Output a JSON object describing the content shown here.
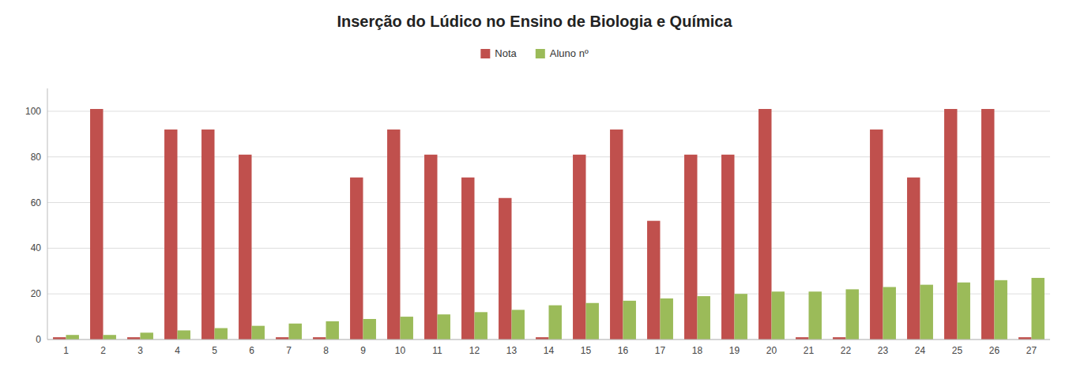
{
  "chart_data": {
    "type": "bar",
    "title": "Inserção do Lúdico no Ensino de Biologia e Química",
    "categories": [
      1,
      2,
      3,
      4,
      5,
      6,
      7,
      8,
      9,
      10,
      11,
      12,
      13,
      14,
      15,
      16,
      17,
      18,
      19,
      20,
      21,
      22,
      23,
      24,
      25,
      26,
      27
    ],
    "series": [
      {
        "name": "Nota",
        "color": "#C0504D",
        "values": [
          1,
          101,
          1,
          92,
          92,
          81,
          1,
          1,
          71,
          92,
          81,
          71,
          62,
          1,
          81,
          92,
          52,
          81,
          81,
          101,
          1,
          1,
          92,
          71,
          101,
          101,
          1
        ]
      },
      {
        "name": "Aluno nº",
        "color": "#9BBB59",
        "values": [
          2,
          2,
          3,
          4,
          5,
          6,
          7,
          8,
          9,
          10,
          11,
          12,
          13,
          15,
          16,
          17,
          18,
          19,
          20,
          21,
          21,
          22,
          23,
          24,
          25,
          26,
          27
        ]
      }
    ],
    "ylim": [
      0,
      110
    ],
    "yticks": [
      0,
      20,
      40,
      60,
      80,
      100
    ],
    "grid": true,
    "legend": "top"
  }
}
